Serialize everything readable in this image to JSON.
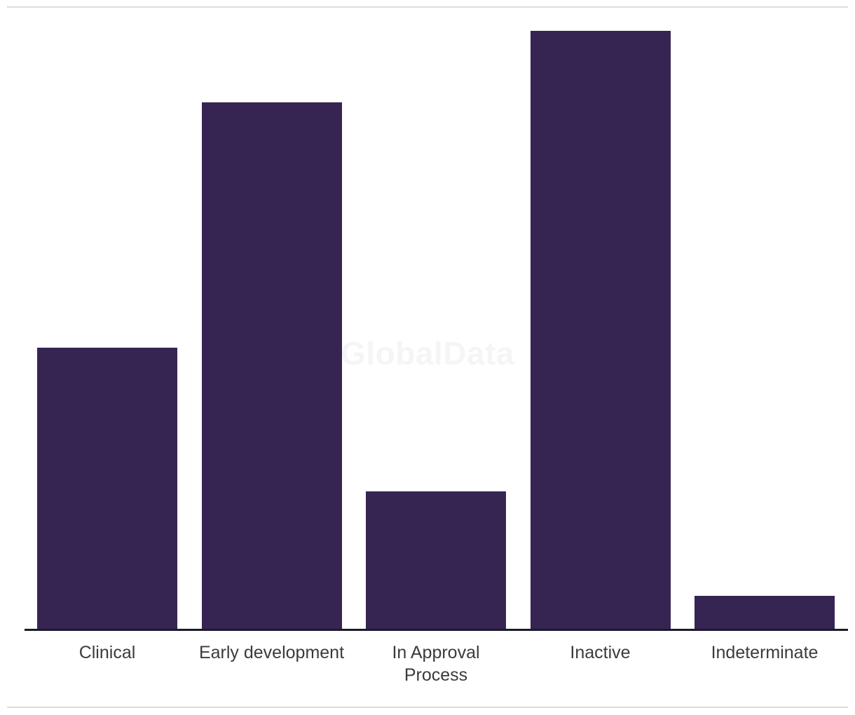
{
  "watermark": {
    "text": "GlobalData"
  },
  "colors": {
    "bar": "#362553",
    "axis_line": "#191a2d",
    "divider": "#dcdcdc",
    "label_text": "#3b3b3b",
    "background": "#ffffff"
  },
  "chart_data": {
    "type": "bar",
    "title": "",
    "categories": [
      "Clinical",
      "Early development",
      "In Approval Process",
      "Inactive",
      "Indeterminate"
    ],
    "values": [
      47,
      88,
      23,
      100,
      5.5
    ],
    "xlabel": "",
    "ylabel": "",
    "ylim": [
      0,
      100
    ],
    "y_axis_visible": false,
    "grid": false,
    "legend": false,
    "bar_color": "#362553",
    "annotations": [
      "GlobalData watermark centered over plot area"
    ]
  }
}
